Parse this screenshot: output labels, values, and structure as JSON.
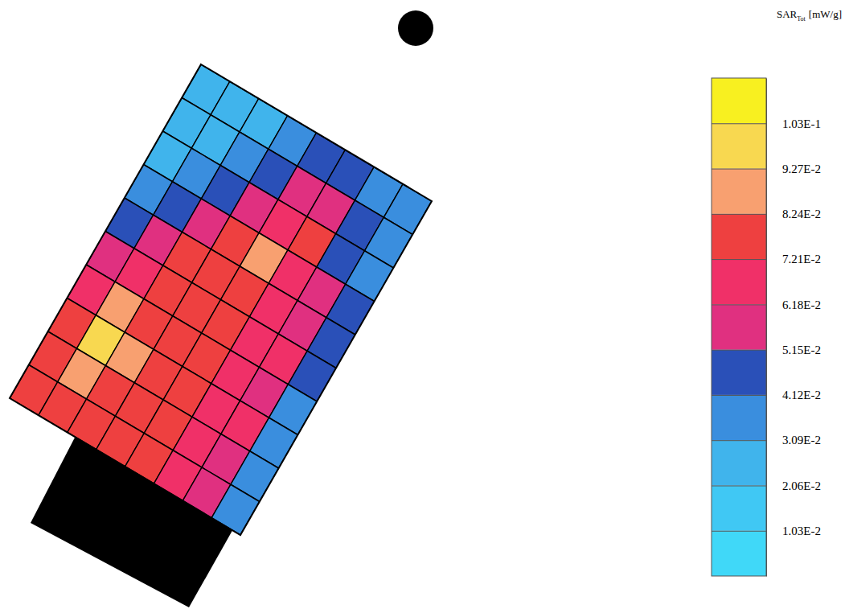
{
  "chart_data": {
    "type": "heatmap",
    "title": {
      "main": "SAR",
      "subscript": "Tot",
      "unit": "[mW/g]"
    },
    "cells": [
      [
        0.025,
        0.025,
        0.028,
        0.035,
        0.045,
        0.045,
        0.04,
        0.035
      ],
      [
        0.025,
        0.028,
        0.035,
        0.045,
        0.06,
        0.058,
        0.045,
        0.035
      ],
      [
        0.028,
        0.032,
        0.045,
        0.058,
        0.07,
        0.075,
        0.05,
        0.04
      ],
      [
        0.035,
        0.045,
        0.058,
        0.075,
        0.085,
        0.07,
        0.055,
        0.045
      ],
      [
        0.045,
        0.06,
        0.075,
        0.08,
        0.078,
        0.072,
        0.06,
        0.045
      ],
      [
        0.06,
        0.072,
        0.08,
        0.08,
        0.076,
        0.07,
        0.062,
        0.045
      ],
      [
        0.072,
        0.085,
        0.082,
        0.08,
        0.075,
        0.07,
        0.06,
        0.04
      ],
      [
        0.075,
        0.098,
        0.085,
        0.08,
        0.076,
        0.072,
        0.062,
        0.038
      ],
      [
        0.078,
        0.09,
        0.082,
        0.078,
        0.075,
        0.072,
        0.06,
        0.035
      ],
      [
        0.075,
        0.08,
        0.078,
        0.076,
        0.074,
        0.07,
        0.055,
        0.035
      ]
    ],
    "colorbar": {
      "range": [
        0,
        0.1133
      ],
      "ticks": [
        {
          "value": 0.0103,
          "label": "1.03E-2"
        },
        {
          "value": 0.0206,
          "label": "2.06E-2"
        },
        {
          "value": 0.0309,
          "label": "3.09E-2"
        },
        {
          "value": 0.0412,
          "label": "4.12E-2"
        },
        {
          "value": 0.0515,
          "label": "5.15E-2"
        },
        {
          "value": 0.0618,
          "label": "6.18E-2"
        },
        {
          "value": 0.0721,
          "label": "7.21E-2"
        },
        {
          "value": 0.0824,
          "label": "8.24E-2"
        },
        {
          "value": 0.0927,
          "label": "9.27E-2"
        },
        {
          "value": 0.103,
          "label": "1.03E-1"
        }
      ],
      "colors": [
        "#40d8f8",
        "#40c8f4",
        "#40b4ec",
        "#3a8ede",
        "#2a50b8",
        "#e03080",
        "#f03068",
        "#ee4040",
        "#f8a070",
        "#f8d850",
        "#f8f020"
      ]
    }
  }
}
